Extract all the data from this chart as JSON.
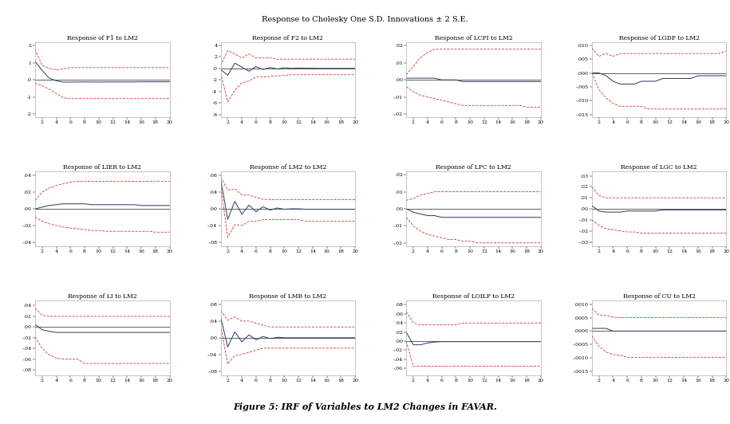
{
  "title": "Response to Cholesky One S.D. Innovations ± 2 S.E.",
  "caption": "Figure 5: IRF of Variables to LM2 Changes in FAVAR.",
  "nrows": 3,
  "ncols": 4,
  "periods": 20,
  "subplots": [
    {
      "title": "Response of F1 to LM2",
      "ylim": [
        -2.2,
        2.2
      ],
      "yticks": [
        -2,
        -1,
        0,
        1,
        2
      ],
      "ytick_labels": [
        "-2",
        "-1",
        ".0",
        "1",
        "2"
      ],
      "irf": [
        1.1,
        0.55,
        0.1,
        -0.05,
        -0.13,
        -0.13,
        -0.12,
        -0.12,
        -0.12,
        -0.13,
        -0.12,
        -0.12,
        -0.12,
        -0.12,
        -0.12,
        -0.11,
        -0.11,
        -0.11,
        -0.11,
        -0.11
      ],
      "upper": [
        1.8,
        0.85,
        0.68,
        0.58,
        0.65,
        0.72,
        0.72,
        0.72,
        0.72,
        0.72,
        0.72,
        0.72,
        0.72,
        0.72,
        0.72,
        0.72,
        0.72,
        0.72,
        0.72,
        0.72
      ],
      "lower": [
        -0.2,
        -0.35,
        -0.55,
        -0.8,
        -1.05,
        -1.1,
        -1.1,
        -1.1,
        -1.1,
        -1.1,
        -1.1,
        -1.1,
        -1.1,
        -1.1,
        -1.1,
        -1.1,
        -1.1,
        -1.1,
        -1.1,
        -1.1
      ]
    },
    {
      "title": "Response of F2 to LM2",
      "ylim": [
        -8.5,
        4.5
      ],
      "yticks": [
        -8,
        -6,
        -4,
        -2,
        0,
        2,
        4
      ],
      "ytick_labels": [
        "-8",
        "-6",
        "-4",
        "-2",
        ".0",
        "2",
        "4"
      ],
      "irf": [
        -0.2,
        -1.2,
        0.9,
        0.2,
        -0.5,
        0.3,
        -0.2,
        0.15,
        -0.1,
        0.1,
        0.0,
        0.05,
        0.02,
        0.02,
        0.0,
        0.0,
        0.0,
        0.0,
        0.0,
        0.0
      ],
      "upper": [
        0.5,
        3.1,
        2.5,
        1.8,
        2.5,
        1.8,
        1.8,
        1.8,
        1.6,
        1.6,
        1.6,
        1.6,
        1.6,
        1.6,
        1.6,
        1.6,
        1.6,
        1.6,
        1.6,
        1.6
      ],
      "lower": [
        -0.8,
        -5.8,
        -3.8,
        -2.5,
        -2.2,
        -1.5,
        -1.5,
        -1.4,
        -1.3,
        -1.2,
        -1.1,
        -1.1,
        -1.1,
        -1.1,
        -1.1,
        -1.1,
        -1.1,
        -1.1,
        -1.1,
        -1.1
      ]
    },
    {
      "title": "Response of LCPI to LM2",
      "ylim": [
        -0.022,
        0.022
      ],
      "yticks": [
        -0.02,
        -0.01,
        0.0,
        0.01,
        0.02
      ],
      "ytick_labels": [
        "-.02",
        "-.01",
        ".00",
        ".01",
        ".02"
      ],
      "irf": [
        0.001,
        0.001,
        0.001,
        0.001,
        0.001,
        0.0,
        0.0,
        0.0,
        -0.001,
        -0.001,
        -0.001,
        -0.001,
        -0.001,
        -0.001,
        -0.001,
        -0.001,
        -0.001,
        -0.001,
        -0.001,
        -0.001
      ],
      "upper": [
        0.003,
        0.008,
        0.013,
        0.016,
        0.018,
        0.018,
        0.018,
        0.018,
        0.018,
        0.018,
        0.018,
        0.018,
        0.018,
        0.018,
        0.018,
        0.018,
        0.018,
        0.018,
        0.018,
        0.018
      ],
      "lower": [
        -0.004,
        -0.007,
        -0.009,
        -0.01,
        -0.011,
        -0.012,
        -0.013,
        -0.014,
        -0.015,
        -0.015,
        -0.015,
        -0.015,
        -0.015,
        -0.015,
        -0.015,
        -0.015,
        -0.015,
        -0.016,
        -0.016,
        -0.016
      ]
    },
    {
      "title": "Response of LGDP to LM2",
      "ylim": [
        -0.016,
        0.011
      ],
      "yticks": [
        -0.015,
        -0.01,
        -0.005,
        0.0,
        0.005,
        0.01
      ],
      "ytick_labels": [
        "-.015",
        "-.010",
        "-.005",
        ".000",
        ".005",
        ".010"
      ],
      "irf": [
        0.0,
        0.0,
        -0.001,
        -0.003,
        -0.004,
        -0.004,
        -0.004,
        -0.003,
        -0.003,
        -0.003,
        -0.002,
        -0.002,
        -0.002,
        -0.002,
        -0.002,
        -0.001,
        -0.001,
        -0.001,
        -0.001,
        -0.001
      ],
      "upper": [
        0.009,
        0.006,
        0.007,
        0.006,
        0.007,
        0.007,
        0.007,
        0.007,
        0.007,
        0.007,
        0.007,
        0.007,
        0.007,
        0.007,
        0.007,
        0.007,
        0.007,
        0.007,
        0.007,
        0.008
      ],
      "lower": [
        0.0,
        -0.006,
        -0.009,
        -0.011,
        -0.012,
        -0.012,
        -0.012,
        -0.012,
        -0.013,
        -0.013,
        -0.013,
        -0.013,
        -0.013,
        -0.013,
        -0.013,
        -0.013,
        -0.013,
        -0.013,
        -0.013,
        -0.013
      ]
    },
    {
      "title": "Response of LIER to LM2",
      "ylim": [
        -0.045,
        0.045
      ],
      "yticks": [
        -0.04,
        -0.02,
        0.0,
        0.02,
        0.04
      ],
      "ytick_labels": [
        "-.04",
        "-.02",
        ".00",
        ".02",
        ".04"
      ],
      "irf": [
        0.0,
        0.002,
        0.004,
        0.005,
        0.006,
        0.006,
        0.006,
        0.006,
        0.005,
        0.005,
        0.005,
        0.005,
        0.005,
        0.005,
        0.005,
        0.004,
        0.004,
        0.004,
        0.004,
        0.004
      ],
      "upper": [
        0.01,
        0.02,
        0.025,
        0.028,
        0.03,
        0.032,
        0.033,
        0.033,
        0.033,
        0.033,
        0.033,
        0.033,
        0.033,
        0.033,
        0.033,
        0.033,
        0.033,
        0.033,
        0.033,
        0.033
      ],
      "lower": [
        -0.01,
        -0.015,
        -0.018,
        -0.02,
        -0.022,
        -0.023,
        -0.024,
        -0.025,
        -0.026,
        -0.026,
        -0.027,
        -0.027,
        -0.027,
        -0.027,
        -0.027,
        -0.027,
        -0.027,
        -0.028,
        -0.028,
        -0.028
      ]
    },
    {
      "title": "Response of LM2 to LM2",
      "ylim": [
        -0.09,
        0.09
      ],
      "yticks": [
        -0.08,
        -0.04,
        0.0,
        0.04,
        0.08
      ],
      "ytick_labels": [
        "-.08",
        "-.04",
        ".00",
        ".04",
        ".08"
      ],
      "irf": [
        0.072,
        -0.025,
        0.018,
        -0.013,
        0.009,
        -0.007,
        0.005,
        -0.003,
        0.002,
        -0.001,
        0.0,
        0.0,
        -0.001,
        -0.001,
        -0.001,
        -0.001,
        -0.001,
        -0.001,
        -0.001,
        -0.001
      ],
      "upper": [
        0.076,
        0.045,
        0.048,
        0.033,
        0.033,
        0.027,
        0.023,
        0.022,
        0.022,
        0.022,
        0.022,
        0.022,
        0.022,
        0.022,
        0.022,
        0.022,
        0.022,
        0.022,
        0.022,
        0.022
      ],
      "lower": [
        0.058,
        -0.068,
        -0.038,
        -0.04,
        -0.03,
        -0.03,
        -0.026,
        -0.026,
        -0.026,
        -0.026,
        -0.026,
        -0.026,
        -0.03,
        -0.03,
        -0.03,
        -0.03,
        -0.03,
        -0.03,
        -0.03,
        -0.03
      ]
    },
    {
      "title": "Response of LPC to LM2",
      "ylim": [
        -0.022,
        0.022
      ],
      "yticks": [
        -0.02,
        -0.01,
        0.0,
        0.01,
        0.02
      ],
      "ytick_labels": [
        "-.02",
        "-.01",
        ".00",
        ".01",
        ".02"
      ],
      "irf": [
        0.0,
        -0.002,
        -0.003,
        -0.004,
        -0.004,
        -0.005,
        -0.005,
        -0.005,
        -0.005,
        -0.005,
        -0.005,
        -0.005,
        -0.005,
        -0.005,
        -0.005,
        -0.005,
        -0.005,
        -0.005,
        -0.005,
        -0.005
      ],
      "upper": [
        0.005,
        0.006,
        0.008,
        0.009,
        0.01,
        0.01,
        0.01,
        0.01,
        0.01,
        0.01,
        0.01,
        0.01,
        0.01,
        0.01,
        0.01,
        0.01,
        0.01,
        0.01,
        0.01,
        0.01
      ],
      "lower": [
        -0.005,
        -0.01,
        -0.013,
        -0.015,
        -0.016,
        -0.017,
        -0.018,
        -0.018,
        -0.019,
        -0.019,
        -0.02,
        -0.02,
        -0.02,
        -0.02,
        -0.02,
        -0.02,
        -0.02,
        -0.02,
        -0.02,
        -0.02
      ]
    },
    {
      "title": "Response of LGC to LM2",
      "ylim": [
        -0.034,
        0.034
      ],
      "yticks": [
        -0.03,
        -0.02,
        -0.01,
        0.0,
        0.01,
        0.02,
        0.03
      ],
      "ytick_labels": [
        "-.03",
        "-.02",
        "-.01",
        ".00",
        ".01",
        ".02",
        ".03"
      ],
      "irf": [
        0.003,
        -0.002,
        -0.003,
        -0.003,
        -0.003,
        -0.002,
        -0.002,
        -0.002,
        -0.002,
        -0.002,
        -0.001,
        -0.001,
        -0.001,
        -0.001,
        -0.001,
        -0.001,
        -0.001,
        -0.001,
        -0.001,
        -0.001
      ],
      "upper": [
        0.02,
        0.012,
        0.01,
        0.01,
        0.01,
        0.01,
        0.01,
        0.01,
        0.01,
        0.01,
        0.01,
        0.01,
        0.01,
        0.01,
        0.01,
        0.01,
        0.01,
        0.01,
        0.01,
        0.01
      ],
      "lower": [
        -0.01,
        -0.015,
        -0.018,
        -0.019,
        -0.02,
        -0.021,
        -0.021,
        -0.022,
        -0.022,
        -0.022,
        -0.022,
        -0.022,
        -0.022,
        -0.022,
        -0.022,
        -0.022,
        -0.022,
        -0.022,
        -0.022,
        -0.022
      ]
    },
    {
      "title": "Response of LI to LM2",
      "ylim": [
        -0.09,
        0.05
      ],
      "yticks": [
        -0.08,
        -0.06,
        -0.04,
        -0.02,
        0.0,
        0.02,
        0.04
      ],
      "ytick_labels": [
        "-.08",
        "-.06",
        "-.04",
        "-.02",
        ".00",
        ".02",
        ".04"
      ],
      "irf": [
        0.005,
        -0.005,
        -0.008,
        -0.01,
        -0.01,
        -0.01,
        -0.01,
        -0.01,
        -0.01,
        -0.01,
        -0.01,
        -0.01,
        -0.01,
        -0.01,
        -0.01,
        -0.01,
        -0.01,
        -0.01,
        -0.01,
        -0.01
      ],
      "upper": [
        0.035,
        0.022,
        0.02,
        0.02,
        0.02,
        0.02,
        0.02,
        0.02,
        0.02,
        0.02,
        0.02,
        0.02,
        0.02,
        0.02,
        0.02,
        0.02,
        0.02,
        0.02,
        0.02,
        0.02
      ],
      "lower": [
        -0.018,
        -0.04,
        -0.052,
        -0.058,
        -0.06,
        -0.06,
        -0.06,
        -0.068,
        -0.068,
        -0.068,
        -0.068,
        -0.068,
        -0.068,
        -0.068,
        -0.068,
        -0.068,
        -0.068,
        -0.068,
        -0.068,
        -0.068
      ]
    },
    {
      "title": "Response of LMB to LM2",
      "ylim": [
        -0.09,
        0.09
      ],
      "yticks": [
        -0.08,
        -0.04,
        0.0,
        0.04,
        0.08
      ],
      "ytick_labels": [
        "-.08",
        "-.04",
        ".00",
        ".04",
        ".08"
      ],
      "irf": [
        0.05,
        -0.022,
        0.014,
        -0.01,
        0.007,
        -0.005,
        0.003,
        -0.002,
        0.001,
        0.0,
        0.0,
        0.0,
        0.0,
        0.0,
        0.0,
        0.0,
        0.0,
        0.0,
        0.0,
        0.0
      ],
      "upper": [
        0.065,
        0.042,
        0.05,
        0.04,
        0.04,
        0.035,
        0.03,
        0.026,
        0.026,
        0.026,
        0.026,
        0.026,
        0.026,
        0.026,
        0.026,
        0.026,
        0.026,
        0.026,
        0.026,
        0.026
      ],
      "lower": [
        0.03,
        -0.063,
        -0.043,
        -0.04,
        -0.035,
        -0.03,
        -0.025,
        -0.025,
        -0.025,
        -0.025,
        -0.025,
        -0.025,
        -0.025,
        -0.025,
        -0.025,
        -0.025,
        -0.025,
        -0.025,
        -0.025,
        -0.025
      ]
    },
    {
      "title": "Response of LOILP to LM2",
      "ylim": [
        -0.075,
        0.09
      ],
      "yticks": [
        -0.06,
        -0.04,
        -0.02,
        0.0,
        0.02,
        0.04,
        0.06,
        0.08
      ],
      "ytick_labels": [
        "-.06",
        "-.04",
        "-.02",
        ".00",
        ".02",
        ".04",
        ".06",
        ".08"
      ],
      "irf": [
        0.02,
        -0.008,
        -0.008,
        -0.004,
        -0.002,
        -0.001,
        -0.001,
        -0.001,
        -0.001,
        -0.001,
        -0.001,
        -0.001,
        -0.001,
        -0.001,
        -0.001,
        -0.001,
        -0.001,
        -0.001,
        -0.001,
        -0.001
      ],
      "upper": [
        0.065,
        0.04,
        0.036,
        0.036,
        0.036,
        0.036,
        0.036,
        0.036,
        0.04,
        0.04,
        0.04,
        0.04,
        0.04,
        0.04,
        0.04,
        0.04,
        0.04,
        0.04,
        0.04,
        0.04
      ],
      "lower": [
        0.0,
        -0.055,
        -0.055,
        -0.055,
        -0.055,
        -0.055,
        -0.055,
        -0.055,
        -0.055,
        -0.055,
        -0.055,
        -0.055,
        -0.055,
        -0.055,
        -0.055,
        -0.055,
        -0.055,
        -0.055,
        -0.055,
        -0.055
      ]
    },
    {
      "title": "Response of CU to LM2",
      "ylim": [
        -0.00165,
        0.00115
      ],
      "yticks": [
        -0.0015,
        -0.001,
        -0.0005,
        0.0,
        0.0005,
        0.001
      ],
      "ytick_labels": [
        "-.0015",
        "-.0010",
        "-.0005",
        ".0000",
        ".0005",
        ".0010"
      ],
      "irf": [
        0.0001,
        0.0001,
        0.0001,
        0.0,
        0.0,
        0.0,
        0.0,
        0.0,
        0.0,
        0.0,
        0.0,
        0.0,
        0.0,
        0.0,
        0.0,
        0.0,
        0.0,
        0.0,
        0.0,
        0.0
      ],
      "upper": [
        0.00085,
        0.0006,
        0.00058,
        0.00052,
        0.0005,
        0.0005,
        0.0005,
        0.0005,
        0.0005,
        0.0005,
        0.0005,
        0.0005,
        0.0005,
        0.0005,
        0.0005,
        0.0005,
        0.0005,
        0.0005,
        0.0005,
        0.0005
      ],
      "lower": [
        -0.00018,
        -0.00058,
        -0.00078,
        -0.00088,
        -0.0009,
        -0.00098,
        -0.00098,
        -0.00098,
        -0.00098,
        -0.00098,
        -0.00098,
        -0.00098,
        -0.00098,
        -0.00098,
        -0.00098,
        -0.00098,
        -0.00098,
        -0.00098,
        -0.00098,
        -0.00098
      ]
    }
  ],
  "irf_color": "#334466",
  "ci_color": "#CC2222",
  "zero_line_color": "#333333",
  "bg_color": "#ffffff",
  "panel_bg": "#ffffff",
  "title_fontsize": 7.0,
  "subplot_title_fontsize": 5.5,
  "tick_fontsize": 4.5,
  "caption_fontsize": 8.0
}
